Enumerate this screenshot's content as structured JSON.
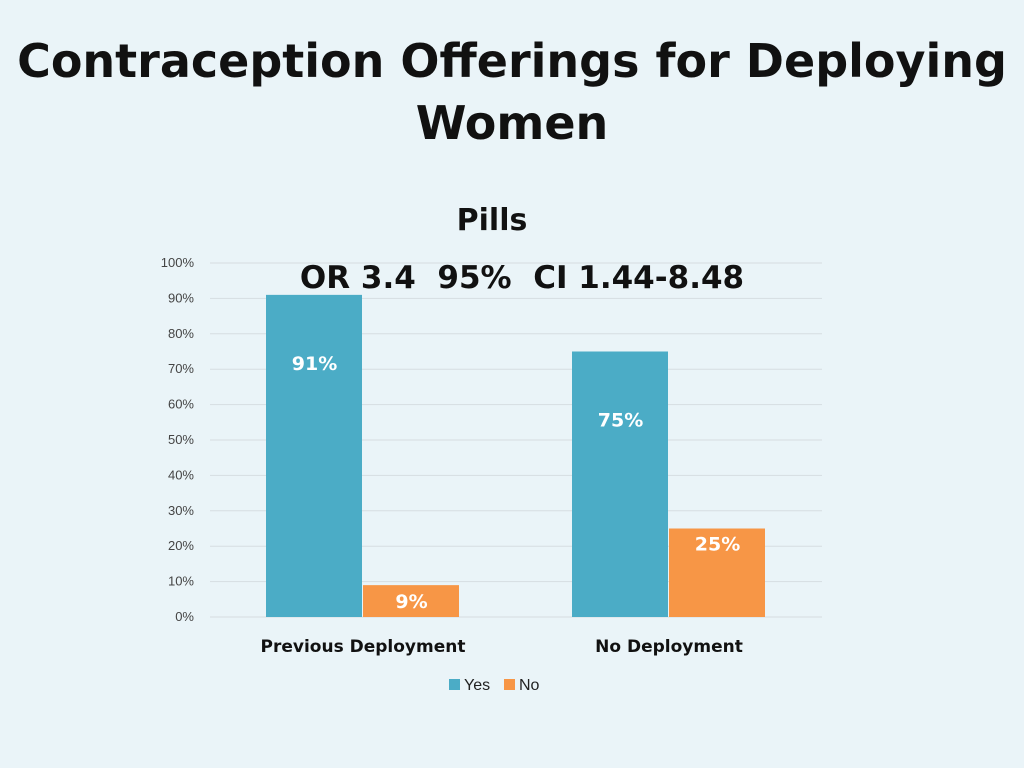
{
  "slide": {
    "title": "Contraception Offerings for Deploying Women"
  },
  "chart_data": {
    "type": "bar",
    "title": "Pills",
    "subtitle": "OR 3.4  95%  CI 1.44-8.48",
    "categories": [
      "Previous Deployment",
      "No Deployment"
    ],
    "series": [
      {
        "name": "Yes",
        "values": [
          91,
          75
        ],
        "labels": [
          "91%",
          "75%"
        ],
        "color": "#4bacc6"
      },
      {
        "name": "No",
        "values": [
          9,
          25
        ],
        "labels": [
          "9%",
          "25%"
        ],
        "color": "#f79646"
      }
    ],
    "ylim": [
      0,
      100
    ],
    "yticks": [
      0,
      10,
      20,
      30,
      40,
      50,
      60,
      70,
      80,
      90,
      100
    ],
    "ytick_labels": [
      "0%",
      "10%",
      "20%",
      "30%",
      "40%",
      "50%",
      "60%",
      "70%",
      "80%",
      "90%",
      "100%"
    ],
    "grid": true,
    "legend": "bottom",
    "xlabel": "",
    "ylabel": ""
  }
}
